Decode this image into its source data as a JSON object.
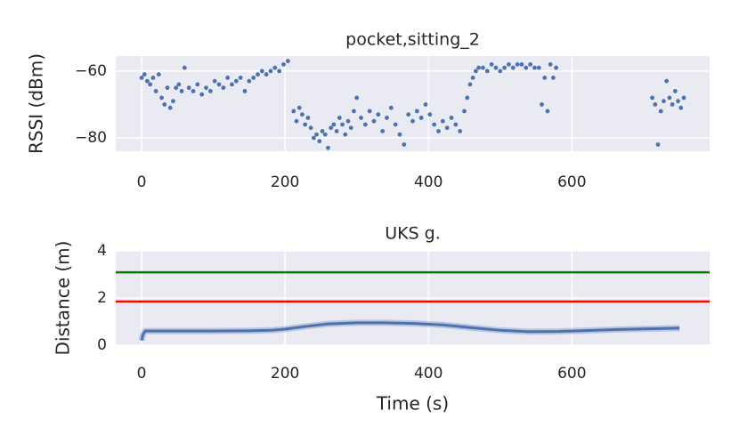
{
  "chart_data": [
    {
      "type": "scatter",
      "title": "pocket,sitting_2",
      "y_label": "RSSI (dBm)",
      "color": "#4c72b0",
      "xlim": [
        -36,
        792
      ],
      "ylim": [
        -84,
        -55.5
      ],
      "xticks": [
        0,
        200,
        400,
        600
      ],
      "yticks": [
        {
          "value": -60,
          "label": "−60"
        },
        {
          "value": -80,
          "label": "−80"
        }
      ],
      "grid": true,
      "x": [
        0,
        4,
        8,
        12,
        16,
        20,
        24,
        28,
        32,
        36,
        40,
        44,
        48,
        52,
        56,
        60,
        66,
        72,
        78,
        84,
        90,
        96,
        102,
        108,
        114,
        120,
        126,
        132,
        138,
        144,
        150,
        156,
        162,
        168,
        174,
        180,
        186,
        192,
        198,
        204,
        212,
        216,
        220,
        224,
        228,
        232,
        236,
        240,
        244,
        248,
        252,
        256,
        260,
        264,
        268,
        272,
        276,
        280,
        284,
        288,
        292,
        296,
        300,
        306,
        312,
        318,
        324,
        330,
        336,
        342,
        348,
        354,
        360,
        366,
        372,
        378,
        384,
        390,
        396,
        402,
        408,
        414,
        420,
        426,
        432,
        438,
        444,
        450,
        454,
        458,
        462,
        466,
        470,
        476,
        482,
        488,
        494,
        500,
        506,
        512,
        518,
        524,
        530,
        536,
        542,
        548,
        554,
        558,
        562,
        566,
        570,
        574,
        578,
        712,
        716,
        720,
        724,
        728,
        732,
        736,
        740,
        744,
        748,
        752,
        756
      ],
      "values": [
        -62,
        -61,
        -63,
        -64,
        -62,
        -66,
        -61,
        -68,
        -70,
        -65,
        -71,
        -69,
        -65,
        -64,
        -66,
        -59,
        -65,
        -66,
        -64,
        -67,
        -65,
        -66,
        -63,
        -64,
        -65,
        -62,
        -64,
        -63,
        -62,
        -66,
        -63,
        -62,
        -61,
        -60,
        -61,
        -60,
        -59,
        -60,
        -58,
        -57,
        -72,
        -75,
        -71,
        -73,
        -76,
        -74,
        -77,
        -80,
        -79,
        -81,
        -78,
        -79,
        -83,
        -77,
        -76,
        -78,
        -74,
        -76,
        -79,
        -75,
        -77,
        -72,
        -68,
        -74,
        -76,
        -72,
        -75,
        -73,
        -78,
        -74,
        -71,
        -76,
        -79,
        -82,
        -73,
        -75,
        -72,
        -74,
        -70,
        -73,
        -76,
        -78,
        -75,
        -77,
        -74,
        -76,
        -78,
        -72,
        -68,
        -64,
        -62,
        -60,
        -59,
        -59,
        -60,
        -58,
        -59,
        -60,
        -59,
        -58,
        -59,
        -58,
        -58,
        -59,
        -58,
        -59,
        -59,
        -70,
        -62,
        -72,
        -58,
        -62,
        -59,
        -68,
        -70,
        -82,
        -72,
        -69,
        -63,
        -68,
        -70,
        -66,
        -69,
        -71,
        -68
      ]
    },
    {
      "type": "line",
      "title": "UKS g.",
      "y_label": "Distance (m)",
      "x_label": "Time (s)",
      "color": "#4c72b0",
      "xlim": [
        -36,
        792
      ],
      "ylim": [
        0,
        4
      ],
      "xticks": [
        0,
        200,
        400,
        600
      ],
      "yticks": [
        0,
        2,
        4
      ],
      "grid": true,
      "hlines": [
        {
          "value": 3.09,
          "color": "#008000"
        },
        {
          "value": 1.85,
          "color": "#ff0000"
        }
      ],
      "x": [
        0,
        2,
        5,
        10,
        50,
        100,
        150,
        180,
        200,
        230,
        260,
        300,
        340,
        380,
        420,
        460,
        500,
        540,
        580,
        620,
        660,
        700,
        750
      ],
      "values": [
        0.2,
        0.45,
        0.6,
        0.6,
        0.6,
        0.6,
        0.61,
        0.63,
        0.68,
        0.8,
        0.9,
        0.95,
        0.95,
        0.92,
        0.86,
        0.74,
        0.63,
        0.57,
        0.58,
        0.62,
        0.66,
        0.69,
        0.72
      ]
    }
  ]
}
